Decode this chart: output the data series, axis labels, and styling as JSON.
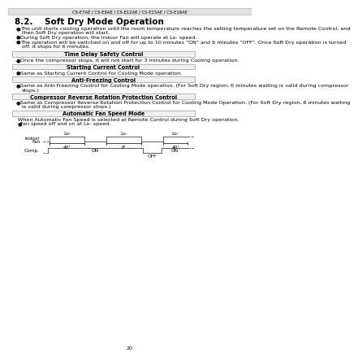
{
  "page_num": "20",
  "header_text": "CS-E7AE / CS-E9AE / CS-E12AE / CS-E15AE / CS-E18AE",
  "section_title": "8.2.    Soft Dry Mode Operation",
  "bullets": [
    "The unit starts cooling operation until the room temperature reaches the setting temperature set on the Remote Control, and then Soft Dry operation will start.",
    "During Soft Dry operation, the Indoor Fan will operate at Lo- speed.",
    "The operation will be switched on and off for up to 10 minutes “ON” and 6 minutes “OFF”. Once Soft Dry operation is turned off, it stops for 6 minutes."
  ],
  "boxes": [
    {
      "label": "Time Delay Safety Control",
      "lines": [
        "Once the compressor stops, it will not start for 3 minutes during Cooling operation."
      ]
    },
    {
      "label": "Starting Current Control",
      "lines": [
        "Same as Starting Current Control for Cooling Mode operation."
      ]
    },
    {
      "label": "Anti-Freezing Control",
      "lines": [
        "Same as Anti-Freezing Control for Cooling Mode operation. (For Soft Dry region, 6 minutes waiting is valid during compressor",
        "stops.)"
      ]
    },
    {
      "label": "Compressor Reverse Rotation Protection Control",
      "lines": [
        "Same as Compressor Reverse Rotation Protection Control for Cooling Mode Operation. (For Soft Dry region, 6 minutes waiting",
        "is valid during compressor stops.)"
      ]
    },
    {
      "label": "Automatic Fan Speed Mode",
      "lines": [
        "When Automatic Fan Speed is selected at Remote Control during Soft Dry operation.",
        "  ● Fan speed off and on at Lo- speed."
      ]
    }
  ],
  "bg_color": "#ffffff",
  "text_color": "#000000",
  "box_border_color": "#999999",
  "box_fill_color": "#f0f0f0",
  "diagram_color": "#444444"
}
